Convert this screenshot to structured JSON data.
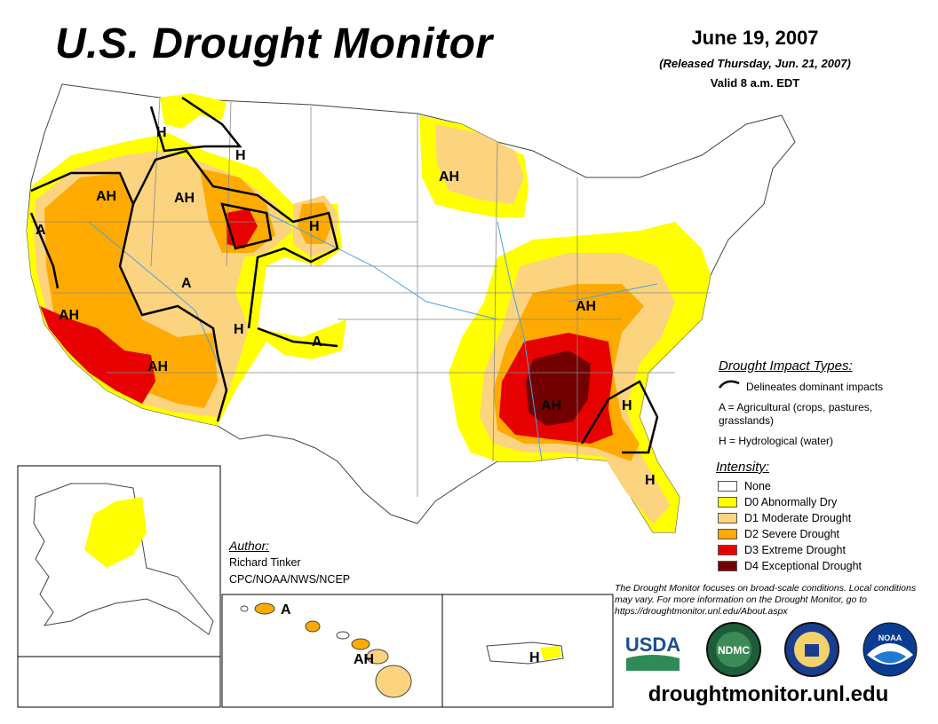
{
  "header": {
    "title": "U.S. Drought Monitor",
    "date": "June 19, 2007",
    "released": "(Released Thursday, Jun. 21, 2007)",
    "valid": "Valid 8 a.m. EDT"
  },
  "map": {
    "region_labels": [
      "AH",
      "A",
      "AH",
      "H",
      "H",
      "AH",
      "H",
      "A",
      "AH",
      "H",
      "A",
      "AH",
      "AH",
      "AH",
      "H",
      "H"
    ],
    "inset_labels": [
      "A",
      "AH",
      "H"
    ]
  },
  "impact_legend": {
    "title": "Drought Impact Types:",
    "line_text": "Delineates dominant impacts",
    "a_text": "A = Agricultural (crops, pastures, grasslands)",
    "h_text": "H = Hydrological (water)"
  },
  "intensity_legend": {
    "title": "Intensity:",
    "items": [
      {
        "label": "None",
        "color": "#ffffff"
      },
      {
        "label": "D0 Abnormally Dry",
        "color": "#ffff00"
      },
      {
        "label": "D1 Moderate Drought",
        "color": "#fcd37f"
      },
      {
        "label": "D2 Severe Drought",
        "color": "#ffaa00"
      },
      {
        "label": "D3 Extreme Drought",
        "color": "#e60000"
      },
      {
        "label": "D4 Exceptional Drought",
        "color": "#730000"
      }
    ]
  },
  "author": {
    "title": "Author:",
    "name": "Richard Tinker",
    "org": "CPC/NOAA/NWS/NCEP"
  },
  "disclaimer": "The Drought Monitor focuses on broad-scale conditions. Local conditions may vary. For more information on the Drought Monitor, go to https://droughtmonitor.unl.edu/About.aspx",
  "logos": {
    "usda": "USDA",
    "ndmc": "NDMC",
    "noaa": "NOAA"
  },
  "website": "droughtmonitor.unl.edu"
}
